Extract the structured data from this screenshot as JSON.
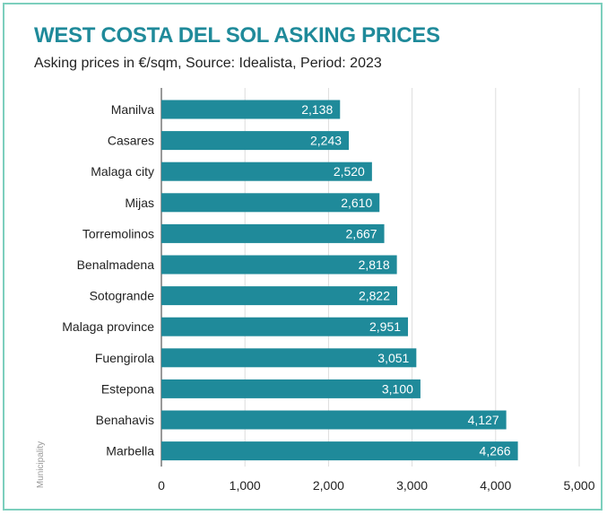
{
  "chart_data": {
    "type": "bar",
    "orientation": "horizontal",
    "title": "WEST COSTA DEL SOL ASKING PRICES",
    "subtitle": "Asking prices in €/sqm, Source: Idealista, Period: 2023",
    "ylabel": "Municipality",
    "xlabel": "",
    "categories": [
      "Manilva",
      "Casares",
      "Malaga city",
      "Mijas",
      "Torremolinos",
      "Benalmadena",
      "Sotogrande",
      "Malaga province",
      "Fuengirola",
      "Estepona",
      "Benahavis",
      "Marbella"
    ],
    "values": [
      2138,
      2243,
      2520,
      2610,
      2667,
      2818,
      2822,
      2951,
      3051,
      3100,
      4127,
      4266
    ],
    "value_labels": [
      "2,138",
      "2,243",
      "2,520",
      "2,610",
      "2,667",
      "2,818",
      "2,822",
      "2,951",
      "3,051",
      "3,100",
      "4,127",
      "4,266"
    ],
    "xticks": [
      0,
      1000,
      2000,
      3000,
      4000,
      5000
    ],
    "xtick_labels": [
      "0",
      "1,000",
      "2,000",
      "3,000",
      "4,000",
      "5,000"
    ],
    "xlim": [
      0,
      5000
    ],
    "grid": true,
    "bar_color": "#1f8a9a",
    "title_color": "#1f8a9a",
    "border_color": "#7ccfbd"
  }
}
